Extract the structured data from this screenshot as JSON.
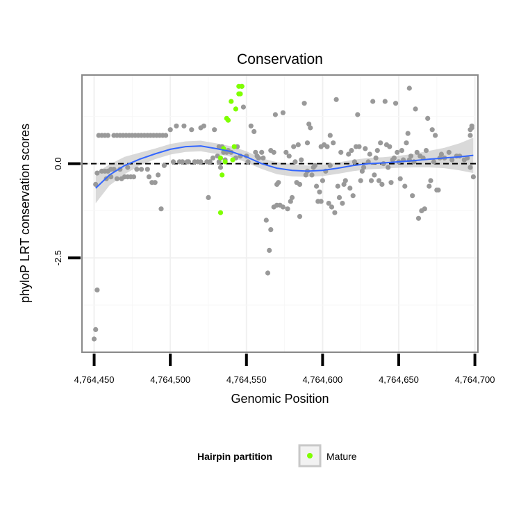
{
  "chart_data": {
    "type": "scatter",
    "title": "Conservation",
    "xlabel": "Genomic Position",
    "ylabel": "phyloP LRT conservation scores",
    "xlim": [
      4764442,
      4764702
    ],
    "ylim": [
      -5.0,
      2.35
    ],
    "x_ticks": [
      4764450,
      4764500,
      4764550,
      4764600,
      4764650,
      4764700
    ],
    "x_tick_labels": [
      "4,764,450",
      "4,764,500",
      "4,764,550",
      "4,764,600",
      "4,764,650",
      "4,764,700"
    ],
    "y_ticks": [
      0.0,
      -2.5
    ],
    "y_tick_labels": [
      "0.0",
      "-2.5"
    ],
    "grid": true,
    "reference_line": {
      "y": 0,
      "style": "dashed",
      "color": "#000000"
    },
    "legend": {
      "title": "Hairpin partition",
      "placement": "bottom",
      "entries": [
        {
          "label": "Mature",
          "color": "#7fff00"
        }
      ]
    },
    "colors": {
      "background_points": "#999999",
      "mature_points": "#7fff00",
      "smooth_line": "#3366ff",
      "confidence_band": "#cccccc"
    },
    "series": [
      {
        "kind": "points",
        "points": [
          [
            4764450,
            -4.65
          ],
          [
            4764451,
            -4.4
          ],
          [
            4764452,
            -3.35
          ],
          [
            4764451,
            -0.55
          ],
          [
            4764452,
            -0.25
          ],
          [
            4764453,
            0.75
          ],
          [
            4764455,
            0.75
          ],
          [
            4764457,
            0.75
          ],
          [
            4764459,
            0.75
          ],
          [
            4764455,
            -0.2
          ],
          [
            4764457,
            -0.2
          ],
          [
            4764459,
            -0.2
          ],
          [
            4764461,
            -0.15
          ],
          [
            4764458,
            -0.4
          ],
          [
            4764461,
            -0.35
          ],
          [
            4764463,
            -0.15
          ],
          [
            4764463,
            0.75
          ],
          [
            4764465,
            0.75
          ],
          [
            4764465,
            -0.4
          ],
          [
            4764467,
            -0.15
          ],
          [
            4764468,
            -0.4
          ],
          [
            4764467,
            0.75
          ],
          [
            4764469,
            0.75
          ],
          [
            4764471,
            0.75
          ],
          [
            4764473,
            0.75
          ],
          [
            4764475,
            0.75
          ],
          [
            4764477,
            0.75
          ],
          [
            4764479,
            0.75
          ],
          [
            4764481,
            0.75
          ],
          [
            4764483,
            0.75
          ],
          [
            4764485,
            0.75
          ],
          [
            4764487,
            0.75
          ],
          [
            4764489,
            0.75
          ],
          [
            4764491,
            0.75
          ],
          [
            4764493,
            0.75
          ],
          [
            4764495,
            0.75
          ],
          [
            4764497,
            0.75
          ],
          [
            4764470,
            -0.35
          ],
          [
            4764472,
            -0.35
          ],
          [
            4764474,
            -0.35
          ],
          [
            4764472,
            -0.1
          ],
          [
            4764476,
            -0.35
          ],
          [
            4764478,
            -0.15
          ],
          [
            4764481,
            -0.15
          ],
          [
            4764485,
            -0.15
          ],
          [
            4764486,
            -0.35
          ],
          [
            4764488,
            -0.5
          ],
          [
            4764490,
            -0.5
          ],
          [
            4764492,
            -0.3
          ],
          [
            4764494,
            -1.2
          ],
          [
            4764496,
            -0.05
          ],
          [
            4764500,
            0.9
          ],
          [
            4764502,
            0.05
          ],
          [
            4764504,
            1.0
          ],
          [
            4764506,
            0.05
          ],
          [
            4764508,
            0.05
          ],
          [
            4764509,
            1.0
          ],
          [
            4764511,
            0.05
          ],
          [
            4764512,
            0.05
          ],
          [
            4764514,
            0.9
          ],
          [
            4764516,
            0.05
          ],
          [
            4764518,
            0.05
          ],
          [
            4764520,
            0.05
          ],
          [
            4764520,
            0.95
          ],
          [
            4764522,
            1.0
          ],
          [
            4764524,
            0.05
          ],
          [
            4764525,
            -0.9
          ],
          [
            4764526,
            0.05
          ],
          [
            4764528,
            0.15
          ],
          [
            4764529,
            0.9
          ],
          [
            4764532,
            0.05
          ],
          [
            4764531,
            0.2
          ],
          [
            4764532,
            0.45
          ],
          [
            4764533,
            -0.1
          ],
          [
            4764534,
            0.45
          ],
          [
            4764535,
            0.3
          ],
          [
            4764536,
            0.1
          ],
          [
            4764537,
            0.3
          ],
          [
            4764538,
            0.35
          ],
          [
            4764540,
            0.3
          ],
          [
            4764543,
            0.15
          ],
          [
            4764544,
            0.45
          ],
          [
            4764546,
            0.2
          ],
          [
            4764547,
            2.05
          ],
          [
            4764548,
            1.5
          ],
          [
            4764550,
            0.2
          ],
          [
            4764551,
            0.05
          ],
          [
            4764553,
            1.0
          ],
          [
            4764555,
            0.85
          ],
          [
            4764556,
            0.3
          ],
          [
            4764557,
            0.2
          ],
          [
            4764558,
            0.15
          ],
          [
            4764560,
            0.3
          ],
          [
            4764561,
            0.15
          ],
          [
            4764563,
            -1.5
          ],
          [
            4764564,
            -2.9
          ],
          [
            4764565,
            -2.3
          ],
          [
            4764566,
            -1.75
          ],
          [
            4764566,
            0.35
          ],
          [
            4764568,
            0.3
          ],
          [
            4764568,
            -1.15
          ],
          [
            4764569,
            1.3
          ],
          [
            4764570,
            -0.55
          ],
          [
            4764570,
            -1.1
          ],
          [
            4764571,
            -0.5
          ],
          [
            4764572,
            -1.1
          ],
          [
            4764574,
            -1.15
          ],
          [
            4764574,
            1.35
          ],
          [
            4764576,
            0.3
          ],
          [
            4764577,
            -1.2
          ],
          [
            4764578,
            0.2
          ],
          [
            4764579,
            -1.0
          ],
          [
            4764580,
            -0.9
          ],
          [
            4764581,
            0.45
          ],
          [
            4764582,
            0.05
          ],
          [
            4764583,
            -0.5
          ],
          [
            4764584,
            0.5
          ],
          [
            4764585,
            -1.4
          ],
          [
            4764585,
            -0.55
          ],
          [
            4764586,
            0.1
          ],
          [
            4764588,
            1.6
          ],
          [
            4764589,
            -0.3
          ],
          [
            4764590,
            0.55
          ],
          [
            4764590,
            -0.2
          ],
          [
            4764591,
            1.05
          ],
          [
            4764592,
            0.95
          ],
          [
            4764593,
            -0.3
          ],
          [
            4764594,
            -0.1
          ],
          [
            4764595,
            -0.05
          ],
          [
            4764596,
            -0.6
          ],
          [
            4764597,
            -1.0
          ],
          [
            4764598,
            -0.75
          ],
          [
            4764599,
            0.45
          ],
          [
            4764599,
            -1.0
          ],
          [
            4764600,
            -0.45
          ],
          [
            4764601,
            0.5
          ],
          [
            4764602,
            -0.2
          ],
          [
            4764603,
            0.45
          ],
          [
            4764604,
            -1.05
          ],
          [
            4764605,
            0.75
          ],
          [
            4764605,
            -0.05
          ],
          [
            4764606,
            -1.15
          ],
          [
            4764607,
            0.55
          ],
          [
            4764608,
            -1.3
          ],
          [
            4764609,
            1.7
          ],
          [
            4764610,
            -0.6
          ],
          [
            4764611,
            -0.9
          ],
          [
            4764612,
            0.3
          ],
          [
            4764613,
            -1.05
          ],
          [
            4764614,
            -0.55
          ],
          [
            4764615,
            -0.45
          ],
          [
            4764617,
            0.25
          ],
          [
            4764618,
            -0.65
          ],
          [
            4764619,
            0.35
          ],
          [
            4764620,
            -0.85
          ],
          [
            4764621,
            0.05
          ],
          [
            4764622,
            0.45
          ],
          [
            4764623,
            1.3
          ],
          [
            4764624,
            0.45
          ],
          [
            4764625,
            -0.45
          ],
          [
            4764626,
            -0.2
          ],
          [
            4764627,
            -0.1
          ],
          [
            4764628,
            0.4
          ],
          [
            4764630,
            0.05
          ],
          [
            4764631,
            0.25
          ],
          [
            4764632,
            -0.45
          ],
          [
            4764633,
            1.65
          ],
          [
            4764634,
            -0.3
          ],
          [
            4764635,
            0.15
          ],
          [
            4764636,
            0.35
          ],
          [
            4764637,
            -0.45
          ],
          [
            4764638,
            0.55
          ],
          [
            4764639,
            -0.55
          ],
          [
            4764640,
            0.0
          ],
          [
            4764641,
            1.65
          ],
          [
            4764642,
            0.5
          ],
          [
            4764643,
            -0.1
          ],
          [
            4764644,
            0.45
          ],
          [
            4764645,
            -0.5
          ],
          [
            4764646,
            0.1
          ],
          [
            4764647,
            0.15
          ],
          [
            4764648,
            1.6
          ],
          [
            4764649,
            0.3
          ],
          [
            4764650,
            0.05
          ],
          [
            4764651,
            -0.4
          ],
          [
            4764652,
            0.35
          ],
          [
            4764653,
            0.1
          ],
          [
            4764654,
            -0.6
          ],
          [
            4764655,
            0.55
          ],
          [
            4764656,
            0.8
          ],
          [
            4764657,
            2.0
          ],
          [
            4764657,
            0.1
          ],
          [
            4764658,
            0.2
          ],
          [
            4764659,
            -0.85
          ],
          [
            4764660,
            0.05
          ],
          [
            4764661,
            1.45
          ],
          [
            4764662,
            0.3
          ],
          [
            4764663,
            -1.45
          ],
          [
            4764664,
            0.2
          ],
          [
            4764665,
            -1.25
          ],
          [
            4764666,
            0.15
          ],
          [
            4764667,
            -1.2
          ],
          [
            4764668,
            0.35
          ],
          [
            4764669,
            1.2
          ],
          [
            4764670,
            -0.6
          ],
          [
            4764671,
            -0.45
          ],
          [
            4764672,
            0.9
          ],
          [
            4764673,
            0.05
          ],
          [
            4764674,
            0.75
          ],
          [
            4764675,
            -0.7
          ],
          [
            4764676,
            -0.7
          ],
          [
            4764677,
            0.15
          ],
          [
            4764678,
            0.25
          ],
          [
            4764680,
            0.15
          ],
          [
            4764683,
            0.3
          ],
          [
            4764685,
            0.1
          ],
          [
            4764688,
            0.2
          ],
          [
            4764690,
            0.2
          ],
          [
            4764693,
            0.1
          ],
          [
            4764695,
            0.15
          ],
          [
            4764697,
            0.75
          ],
          [
            4764698,
            0.95
          ],
          [
            4764697,
            0.9
          ],
          [
            4764698,
            1.0
          ],
          [
            4764699,
            -0.35
          ],
          [
            4764697,
            -0.1
          ]
        ]
      },
      {
        "name": "Mature",
        "kind": "points",
        "points": [
          [
            4764533,
            -1.3
          ],
          [
            4764533,
            0.15
          ],
          [
            4764534,
            -0.3
          ],
          [
            4764535,
            0.4
          ],
          [
            4764536,
            0.05
          ],
          [
            4764537,
            1.2
          ],
          [
            4764538,
            1.15
          ],
          [
            4764540,
            1.65
          ],
          [
            4764541,
            0.1
          ],
          [
            4764542,
            0.45
          ],
          [
            4764543,
            1.45
          ],
          [
            4764545,
            1.85
          ],
          [
            4764546,
            1.85
          ],
          [
            4764545,
            2.05
          ],
          [
            4764547,
            2.05
          ]
        ]
      },
      {
        "kind": "smooth",
        "x": [
          4764451,
          4764460,
          4764470,
          4764480,
          4764490,
          4764500,
          4764510,
          4764520,
          4764530,
          4764540,
          4764550,
          4764560,
          4764570,
          4764580,
          4764590,
          4764600,
          4764610,
          4764620,
          4764630,
          4764640,
          4764650,
          4764660,
          4764670,
          4764680,
          4764690,
          4764699
        ],
        "y": [
          -0.65,
          -0.3,
          -0.05,
          0.12,
          0.26,
          0.38,
          0.45,
          0.47,
          0.4,
          0.32,
          0.18,
          0.0,
          -0.12,
          -0.18,
          -0.2,
          -0.18,
          -0.12,
          -0.05,
          0.0,
          0.02,
          0.05,
          0.08,
          0.12,
          0.15,
          0.18,
          0.22
        ],
        "lower": [
          -1.05,
          -0.58,
          -0.28,
          -0.05,
          0.12,
          0.24,
          0.31,
          0.33,
          0.26,
          0.18,
          0.03,
          -0.14,
          -0.28,
          -0.34,
          -0.35,
          -0.33,
          -0.27,
          -0.2,
          -0.15,
          -0.13,
          -0.11,
          -0.1,
          -0.1,
          -0.12,
          -0.18,
          -0.25
        ],
        "upper": [
          -0.25,
          -0.02,
          0.18,
          0.29,
          0.4,
          0.52,
          0.59,
          0.61,
          0.54,
          0.46,
          0.33,
          0.14,
          0.04,
          -0.02,
          -0.05,
          -0.03,
          0.03,
          0.1,
          0.15,
          0.17,
          0.21,
          0.26,
          0.34,
          0.42,
          0.54,
          0.69
        ]
      }
    ]
  }
}
